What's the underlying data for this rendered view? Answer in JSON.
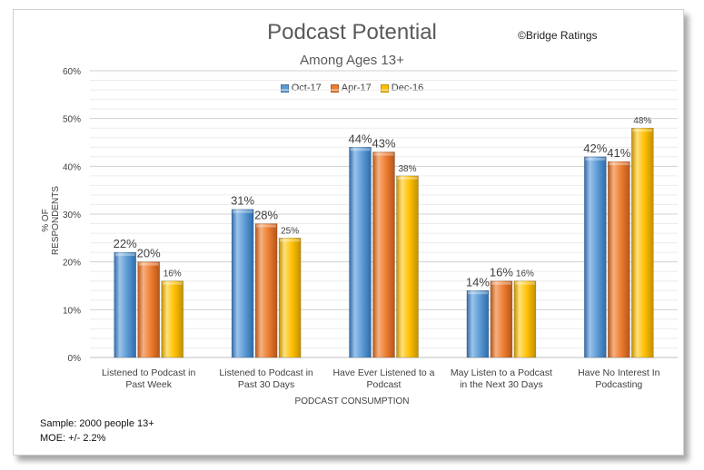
{
  "notes": {
    "sample": "Sample: 2000 people 13+",
    "moe": "MOE: +/- 2.2%"
  },
  "copyright": "©Bridge Ratings",
  "chart_data": {
    "type": "bar",
    "title": "Podcast Potential",
    "subtitle": "Among Ages 13+",
    "xlabel": "PODCAST CONSUMPTION",
    "ylabel": "% OF RESPONDENTS",
    "ylim": [
      0,
      60
    ],
    "yticks": [
      "0%",
      "10%",
      "20%",
      "30%",
      "40%",
      "50%",
      "60%"
    ],
    "ytick_values": [
      0,
      10,
      20,
      30,
      40,
      50,
      60
    ],
    "grid": true,
    "legend_position": "top",
    "categories": [
      [
        "Listened to Podcast in",
        "Past Week"
      ],
      [
        "Listened to Podcast in",
        "Past 30 Days"
      ],
      [
        "Have Ever Listened to a",
        "Podcast"
      ],
      [
        "May Listen to a Podcast",
        "in the Next 30 Days"
      ],
      [
        "Have No Interest In",
        "Podcasting"
      ]
    ],
    "series": [
      {
        "name": "Oct-17",
        "color": "#5b9bd5",
        "values": [
          22,
          31,
          44,
          14,
          42
        ],
        "labels": [
          "22%",
          "31%",
          "44%",
          "14%",
          "42%"
        ]
      },
      {
        "name": "Apr-17",
        "color": "#ed7d31",
        "values": [
          20,
          28,
          43,
          16,
          41
        ],
        "labels": [
          "20%",
          "28%",
          "43%",
          "16%",
          "41%"
        ]
      },
      {
        "name": "Dec-16",
        "color": "#ffc000",
        "values": [
          16,
          25,
          38,
          16,
          48
        ],
        "labels": [
          "16%",
          "25%",
          "38%",
          "16%",
          "48%"
        ]
      }
    ]
  }
}
